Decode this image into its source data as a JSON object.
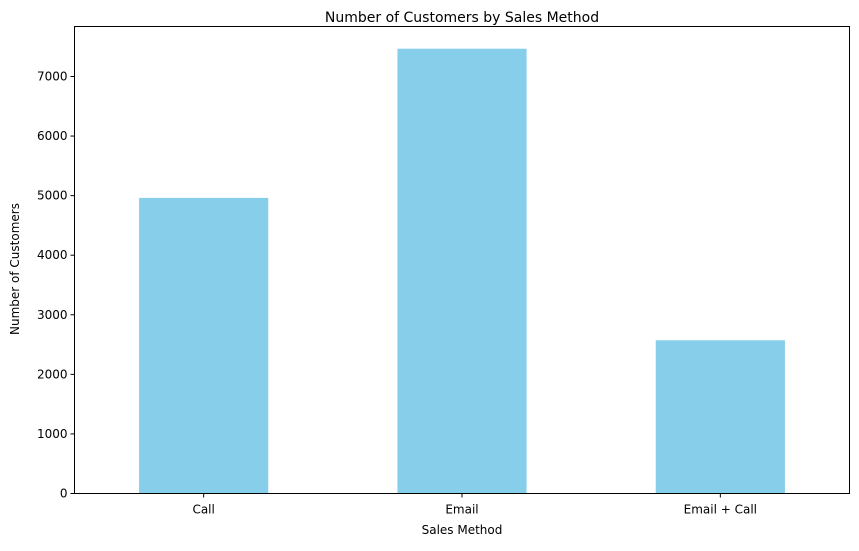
{
  "chart_data": {
    "type": "bar",
    "title": "Number of Customers by Sales Method",
    "xlabel": "Sales Method",
    "ylabel": "Number of Customers",
    "categories": [
      "Call",
      "Email",
      "Email + Call"
    ],
    "values": [
      4962,
      7466,
      2572
    ],
    "ylim": [
      0,
      7839
    ],
    "yticks": [
      0,
      1000,
      2000,
      3000,
      4000,
      5000,
      6000,
      7000
    ],
    "ytick_labels": [
      "0",
      "1000",
      "2000",
      "3000",
      "4000",
      "5000",
      "6000",
      "7000"
    ],
    "bar_color": "#87ceeb",
    "grid": false,
    "legend": "none"
  }
}
